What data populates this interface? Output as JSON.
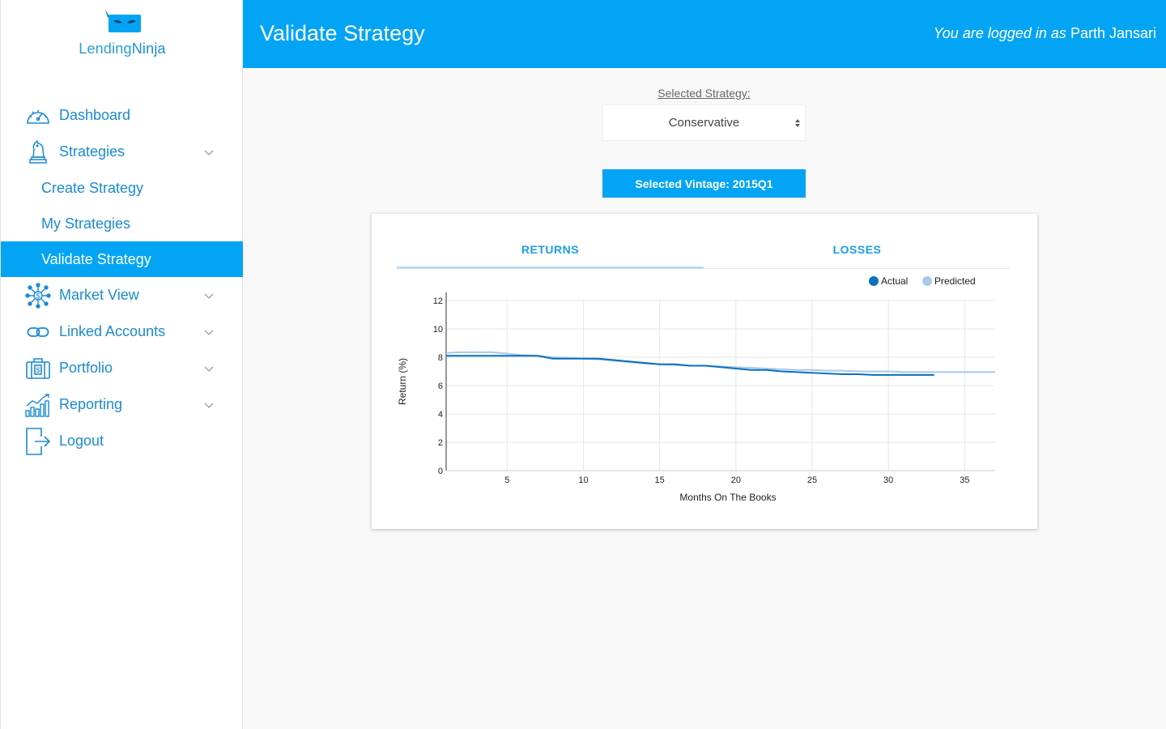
{
  "brand": {
    "name_light": "Lending",
    "name_bold": "Ninja"
  },
  "colors": {
    "accent": "#03a4f4",
    "nav_text": "#1a8ad4",
    "actual": "#0b6fbd",
    "predicted": "#a9c8ea"
  },
  "sidebar": {
    "items": [
      {
        "label": "Dashboard",
        "icon": "speedometer-icon"
      },
      {
        "label": "Strategies",
        "icon": "chess-knight-icon",
        "expanded": true,
        "children": [
          {
            "label": "Create Strategy"
          },
          {
            "label": "My Strategies"
          },
          {
            "label": "Validate Strategy",
            "active": true
          }
        ]
      },
      {
        "label": "Market View",
        "icon": "network-dollar-icon"
      },
      {
        "label": "Linked Accounts",
        "icon": "link-icon"
      },
      {
        "label": "Portfolio",
        "icon": "briefcase-dollar-icon"
      },
      {
        "label": "Reporting",
        "icon": "bar-chart-icon"
      },
      {
        "label": "Logout",
        "icon": "logout-icon"
      }
    ]
  },
  "header": {
    "title": "Validate Strategy",
    "login_prefix": "You are logged in as",
    "user_name": "Parth Jansari"
  },
  "main": {
    "strategy_label": "Selected Strategy:",
    "strategy_value": "Conservative",
    "vintage_button": "Selected Vintage: 2015Q1",
    "tabs": [
      {
        "label": "RETURNS",
        "active": true
      },
      {
        "label": "LOSSES",
        "active": false
      }
    ]
  },
  "chart_data": {
    "type": "line",
    "xlabel": "Months On The Books",
    "ylabel": "Return (%)",
    "xlim": [
      1,
      37
    ],
    "ylim": [
      0,
      12
    ],
    "xticks": [
      5,
      10,
      15,
      20,
      25,
      30,
      35
    ],
    "yticks": [
      0,
      2,
      4,
      6,
      8,
      10,
      12
    ],
    "grid": true,
    "legend_position": "top-right",
    "series": [
      {
        "name": "Actual",
        "color": "#0b6fbd",
        "x": [
          1,
          2,
          3,
          4,
          5,
          6,
          7,
          8,
          9,
          10,
          11,
          12,
          13,
          14,
          15,
          16,
          17,
          18,
          19,
          20,
          21,
          22,
          23,
          24,
          25,
          26,
          27,
          28,
          29,
          30,
          31,
          32,
          33
        ],
        "y": [
          8.1,
          8.1,
          8.1,
          8.1,
          8.1,
          8.1,
          8.1,
          7.9,
          7.9,
          7.9,
          7.9,
          7.8,
          7.7,
          7.6,
          7.5,
          7.5,
          7.4,
          7.4,
          7.3,
          7.2,
          7.1,
          7.1,
          7.0,
          6.95,
          6.9,
          6.85,
          6.8,
          6.8,
          6.75,
          6.75,
          6.75,
          6.75,
          6.75
        ]
      },
      {
        "name": "Predicted",
        "color": "#a9c8ea",
        "x": [
          1,
          2,
          3,
          4,
          5,
          6,
          7,
          8,
          9,
          10,
          11,
          12,
          13,
          14,
          15,
          16,
          17,
          18,
          19,
          20,
          21,
          22,
          23,
          24,
          25,
          26,
          27,
          28,
          29,
          30,
          31,
          32,
          33,
          34,
          35,
          36,
          37
        ],
        "y": [
          8.3,
          8.35,
          8.35,
          8.35,
          8.25,
          8.15,
          8.1,
          8.0,
          7.95,
          7.9,
          7.85,
          7.75,
          7.65,
          7.55,
          7.5,
          7.45,
          7.4,
          7.4,
          7.35,
          7.3,
          7.25,
          7.2,
          7.15,
          7.1,
          7.1,
          7.05,
          7.05,
          7.0,
          7.0,
          7.0,
          6.95,
          6.95,
          6.95,
          6.95,
          6.95,
          6.95,
          6.95
        ]
      }
    ]
  }
}
